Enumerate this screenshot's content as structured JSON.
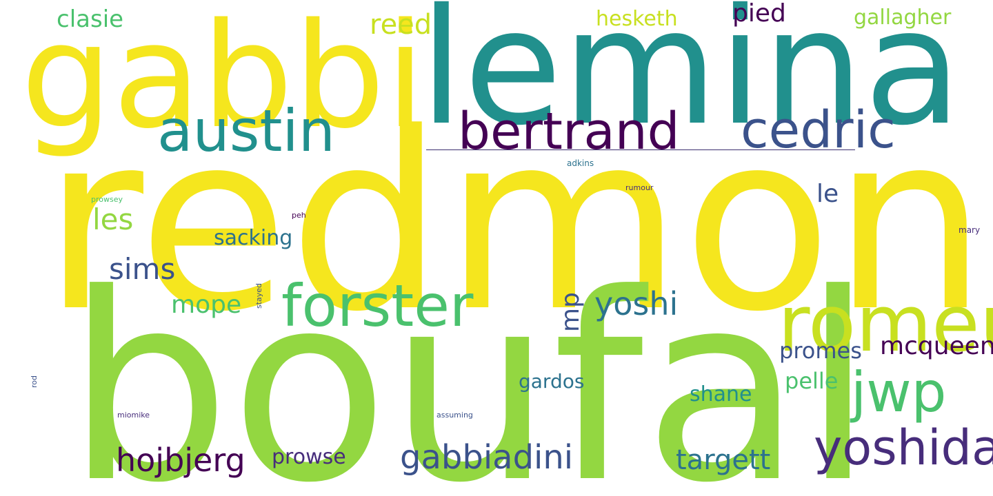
{
  "words": {
    "redmond": "redmond",
    "boufal": "boufal",
    "lemina": "lemina",
    "gabbi": "gabbi",
    "romeu": "romeu",
    "austin": "austin",
    "bertrand": "bertrand",
    "cedric": "cedric",
    "forster": "forster",
    "yoshida": "yoshida",
    "jwp": "jwp",
    "gabbiadini": "gabbiadini",
    "hojbjerg": "hojbjerg",
    "targett": "targett",
    "yoshi": "yoshi",
    "mcqueen": "mcqueen",
    "reed": "reed",
    "clasie": "clasie",
    "hesketh": "hesketh",
    "pied": "pied",
    "gallagher": "gallagher",
    "les": "les",
    "sims": "sims",
    "sacking": "sacking",
    "le": "le",
    "mope": "mope",
    "mp": "mp",
    "promes": "promes",
    "pelle": "pelle",
    "gardos": "gardos",
    "shane": "shane",
    "prowse": "prowse",
    "adkins": "adkins",
    "rumour": "rumour",
    "prowsey": "prowsey",
    "peh": "peh",
    "mary": "mary",
    "stayed": "stayed",
    "rod": "rod",
    "miomike": "miomike",
    "assuming": "assuming"
  },
  "colors": {
    "yellow": "#f5e61e",
    "light_green": "#93d741",
    "teal": "#21908d",
    "dark_purple": "#440154",
    "slate_blue": "#3b528b",
    "green": "#4ac16d",
    "indigo": "#472d7b",
    "yellow_green": "#c8e020",
    "ocean": "#2c728e"
  }
}
